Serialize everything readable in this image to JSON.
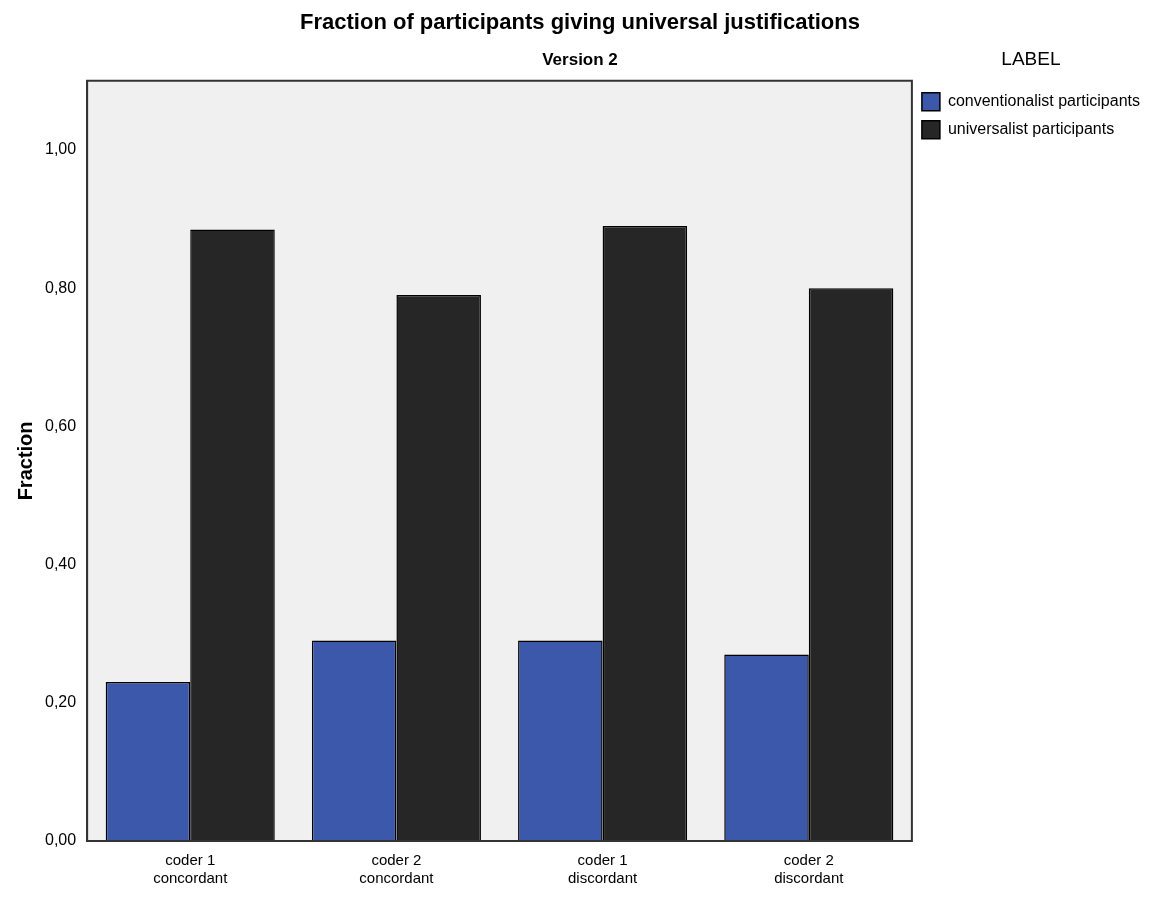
{
  "chart_data": {
    "type": "bar",
    "title": "Fraction of participants giving universal justifications",
    "subtitle": "Version 2",
    "ylabel": "Fraction",
    "legend_title": "LABEL",
    "legend": "top right",
    "grid": false,
    "categories": [
      "coder 1 concordant",
      "coder 2 concordant",
      "coder 1 discordant",
      "coder 2 discordant"
    ],
    "series": [
      {
        "name": "conventionalist participants",
        "color": "#3c58ab",
        "values": [
          0.23,
          0.29,
          0.29,
          0.27
        ]
      },
      {
        "name": "universalist participants",
        "color": "#262626",
        "values": [
          0.885,
          0.79,
          0.89,
          0.8
        ]
      }
    ],
    "ylim": [
      0,
      1.1
    ],
    "yticks": [
      {
        "value": 0,
        "label": "0,00"
      },
      {
        "value": 0.2,
        "label": "0,20"
      },
      {
        "value": 0.4,
        "label": "0,40"
      },
      {
        "value": 0.6,
        "label": "0,60"
      },
      {
        "value": 0.8,
        "label": "0,80"
      },
      {
        "value": 1,
        "label": "1,00"
      }
    ]
  }
}
